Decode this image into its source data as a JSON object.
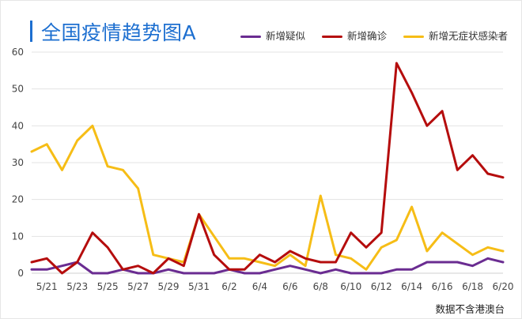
{
  "header": {
    "title": "全国疫情趋势图A",
    "source_note": "数据不含港澳台"
  },
  "colors": {
    "title": "#1d6fd0",
    "gridline": "#e3e3e3"
  },
  "chart_data": {
    "type": "line",
    "title": "全国疫情趋势图A",
    "xlabel": "",
    "ylabel": "",
    "ylim": [
      0,
      60
    ],
    "yticks": [
      0,
      10,
      20,
      30,
      40,
      50,
      60
    ],
    "grid": true,
    "legend_position": "top-right",
    "x": [
      "5/20",
      "5/21",
      "5/22",
      "5/23",
      "5/24",
      "5/25",
      "5/26",
      "5/27",
      "5/28",
      "5/29",
      "5/30",
      "5/31",
      "6/1",
      "6/2",
      "6/3",
      "6/4",
      "6/5",
      "6/6",
      "6/7",
      "6/8",
      "6/9",
      "6/10",
      "6/11",
      "6/12",
      "6/13",
      "6/14",
      "6/15",
      "6/16",
      "6/17",
      "6/18",
      "6/19",
      "6/20"
    ],
    "xtick_labels": [
      "5/21",
      "5/23",
      "5/25",
      "5/27",
      "5/29",
      "5/31",
      "6/2",
      "6/4",
      "6/6",
      "6/8",
      "6/10",
      "6/12",
      "6/14",
      "6/16",
      "6/18",
      "6/20"
    ],
    "series": [
      {
        "name": "新增疑似",
        "color": "#6a2c91",
        "values": [
          1,
          1,
          2,
          3,
          0,
          0,
          1,
          0,
          0,
          1,
          0,
          0,
          0,
          1,
          0,
          0,
          1,
          2,
          1,
          0,
          1,
          0,
          0,
          0,
          1,
          1,
          3,
          3,
          3,
          2,
          4,
          3
        ]
      },
      {
        "name": "新增确诊",
        "color": "#b50d0d",
        "values": [
          3,
          4,
          0,
          3,
          11,
          7,
          1,
          2,
          0,
          4,
          2,
          16,
          5,
          1,
          1,
          5,
          3,
          6,
          4,
          3,
          3,
          11,
          7,
          11,
          57,
          49,
          40,
          44,
          28,
          32,
          27,
          26
        ]
      },
      {
        "name": "新增无症状感染者",
        "color": "#f6bd16",
        "values": [
          33,
          35,
          28,
          36,
          40,
          29,
          28,
          23,
          5,
          4,
          3,
          16,
          10,
          4,
          4,
          3,
          2,
          5,
          2,
          21,
          5,
          4,
          1,
          7,
          9,
          18,
          6,
          11,
          8,
          5,
          7,
          6
        ]
      }
    ]
  }
}
